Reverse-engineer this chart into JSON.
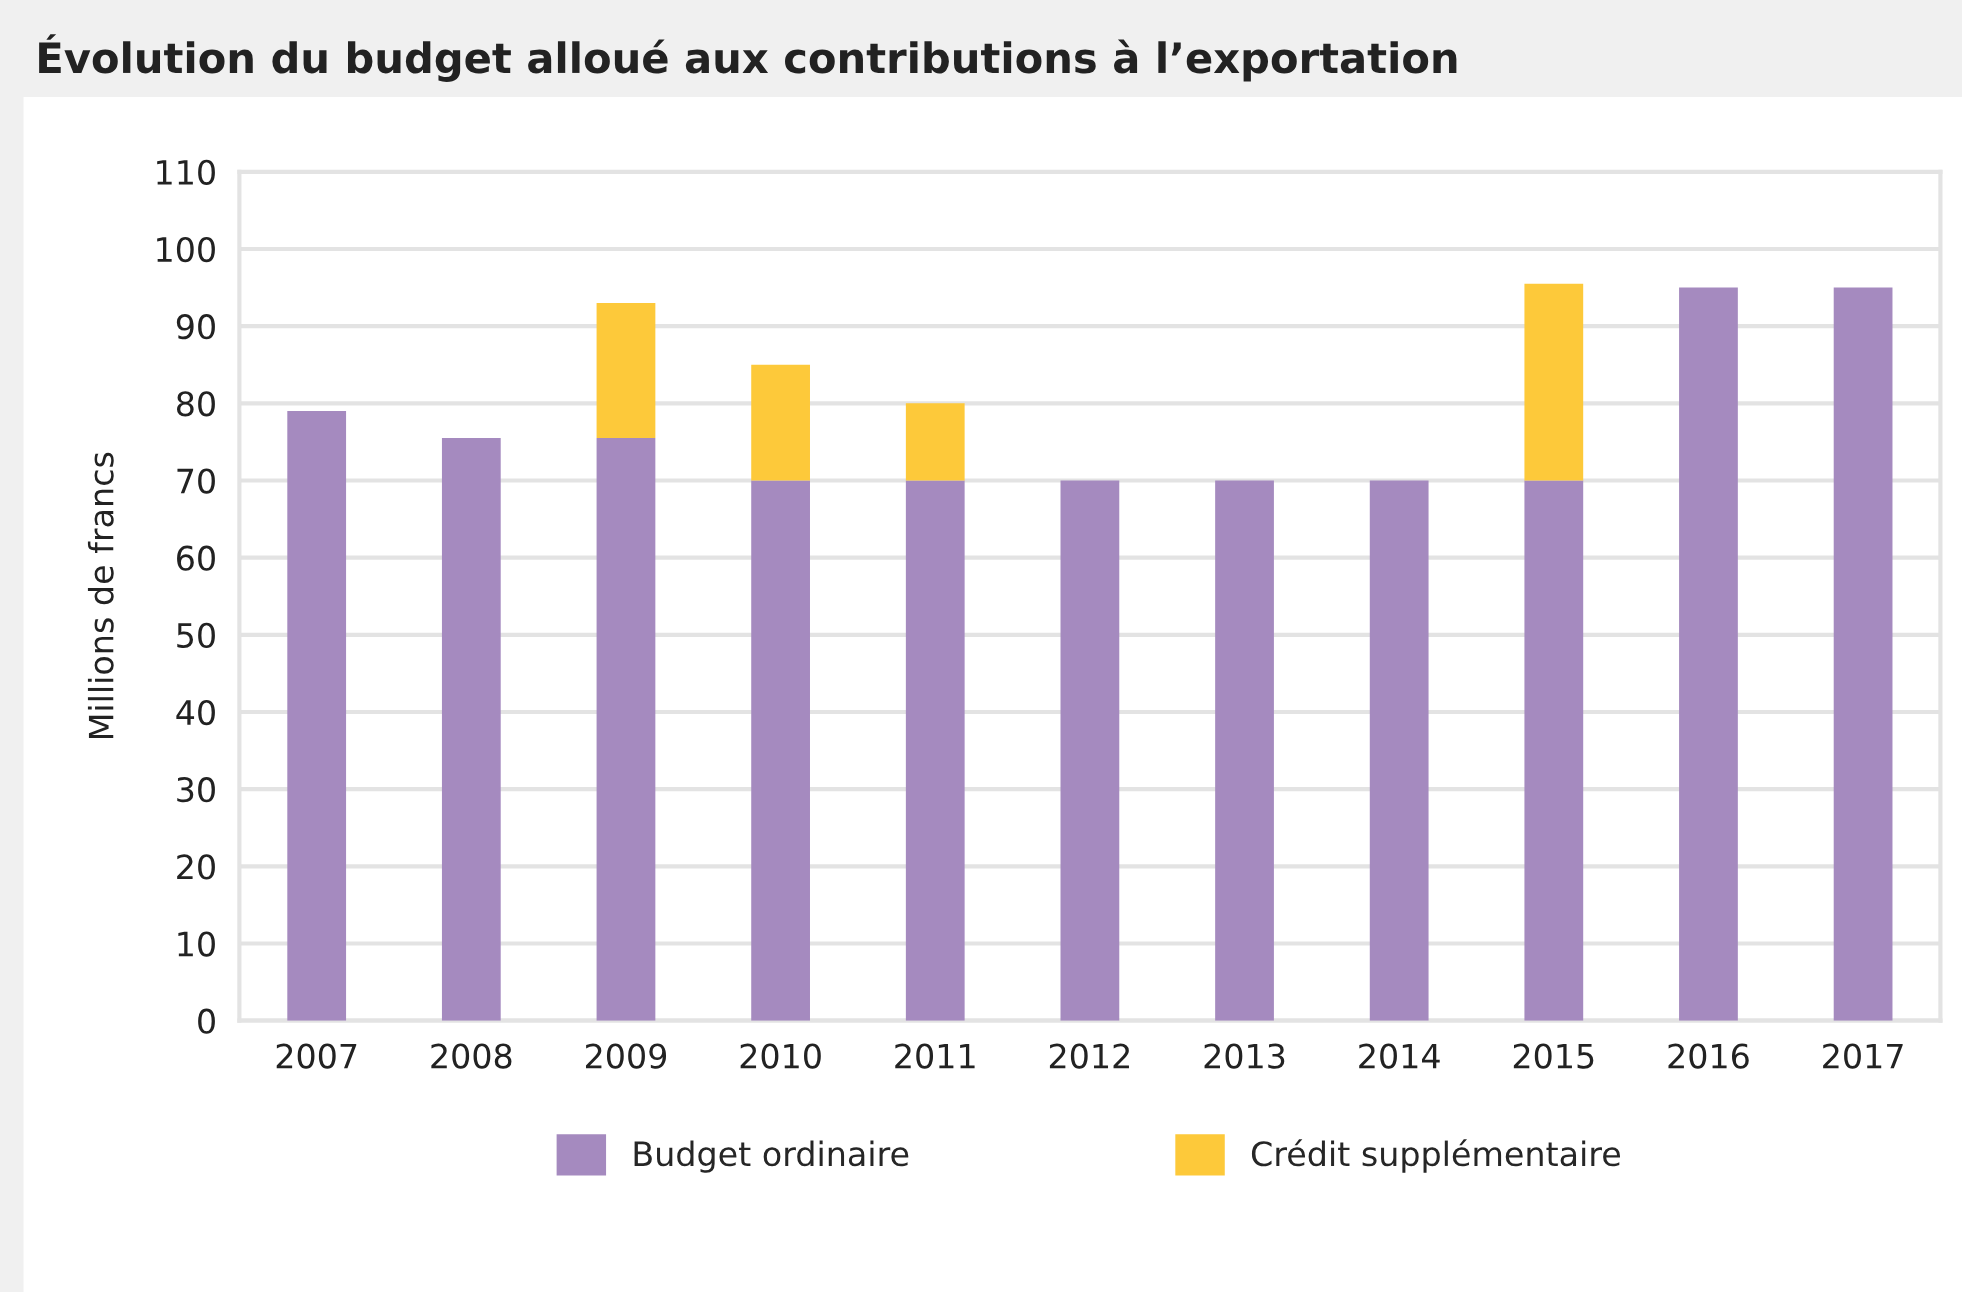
{
  "chart_data": {
    "type": "bar",
    "title": "Évolution du budget alloué aux contributions à l’exportation",
    "ylabel": "Millions de francs",
    "categories": [
      "2007",
      "2008",
      "2009",
      "2010",
      "2011",
      "2012",
      "2013",
      "2014",
      "2015",
      "2016",
      "2017"
    ],
    "stacked": true,
    "series": [
      {
        "name": "Budget ordinaire",
        "color": "#a58abf",
        "values": [
          79,
          75.5,
          75.5,
          70,
          70,
          70,
          70,
          70,
          70,
          95,
          95
        ]
      },
      {
        "name": "Crédit supplémentaire",
        "color": "#fdc93a",
        "values": [
          null,
          null,
          17.5,
          15,
          10,
          null,
          null,
          null,
          25.5,
          null,
          null
        ]
      }
    ],
    "ylim": [
      0,
      110
    ],
    "yticks": [
      0,
      10,
      20,
      30,
      40,
      50,
      60,
      70,
      80,
      90,
      100,
      110
    ],
    "grid": "y",
    "legend": "bottom"
  }
}
